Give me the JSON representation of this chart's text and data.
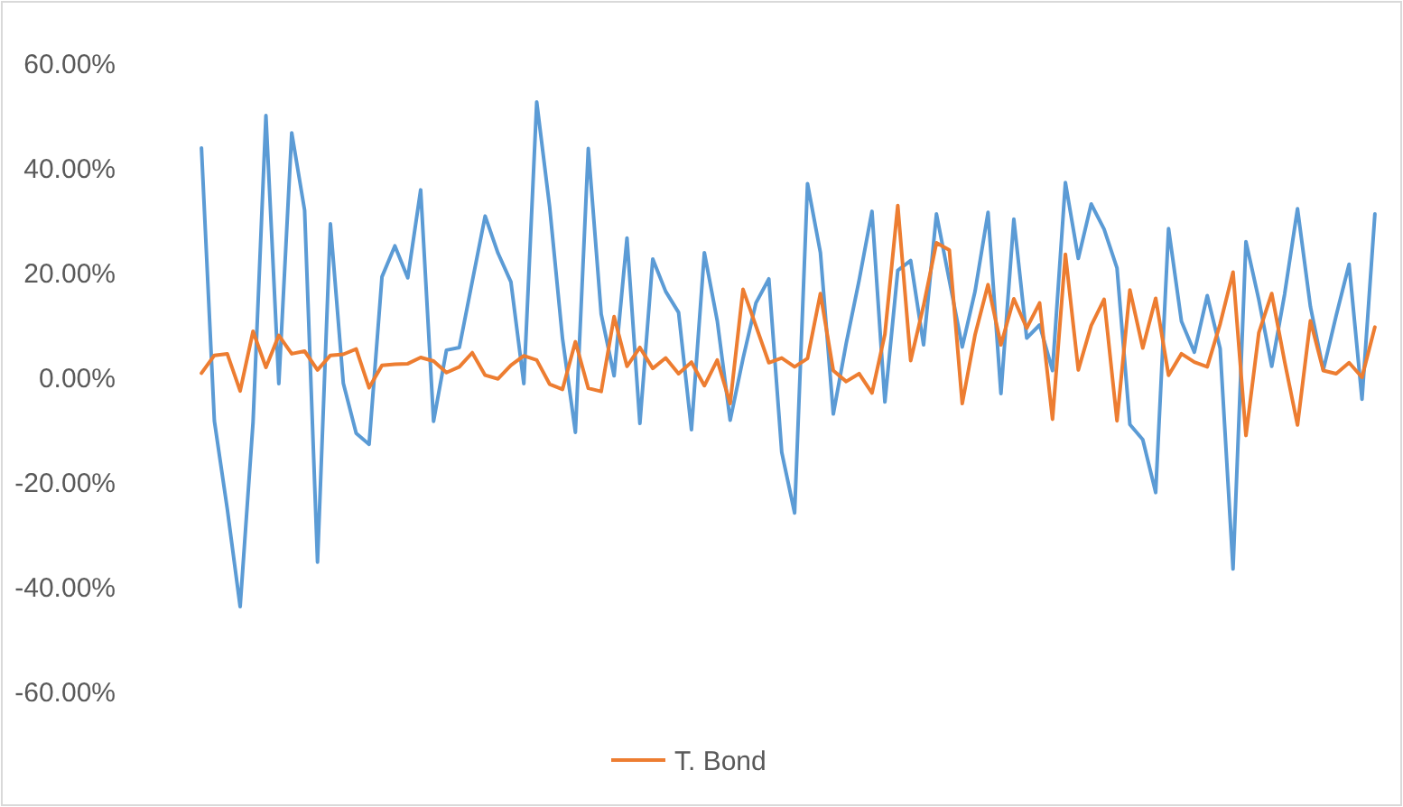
{
  "chart_data": {
    "type": "line",
    "categories": [
      null,
      null,
      null,
      null,
      null,
      null,
      null,
      null,
      null,
      null,
      null,
      null,
      null,
      null,
      null,
      null,
      null,
      null,
      null,
      null,
      null,
      null,
      null,
      null,
      null,
      null,
      null,
      null,
      null,
      null,
      null,
      null,
      null,
      null,
      null,
      null,
      null,
      null,
      null,
      null,
      null,
      null,
      null,
      null,
      null,
      null,
      null,
      null,
      null,
      null,
      null,
      null,
      null,
      null,
      null,
      null,
      null,
      null,
      null,
      null,
      null,
      null,
      null,
      null,
      null,
      null,
      null,
      null,
      null,
      null,
      null,
      null,
      null,
      null,
      null,
      null,
      null,
      null,
      null,
      null,
      null,
      null,
      null,
      null,
      null,
      null,
      null,
      null,
      null,
      null,
      null,
      null
    ],
    "series": [
      {
        "color": "#5b9bd5",
        "values": [
          43.8,
          -8.3,
          -25.1,
          -43.8,
          -8.6,
          50.0,
          -1.2,
          46.7,
          31.9,
          -35.3,
          29.3,
          -1.1,
          -10.7,
          -12.8,
          19.2,
          25.1,
          19.0,
          35.8,
          -8.4,
          5.2,
          5.7,
          18.3,
          30.8,
          23.7,
          18.2,
          -1.2,
          52.6,
          32.6,
          7.4,
          -10.5,
          43.7,
          12.1,
          0.3,
          26.6,
          -8.8,
          22.6,
          16.4,
          12.4,
          -10.0,
          23.8,
          10.8,
          -8.2,
          3.6,
          14.2,
          18.8,
          -14.3,
          -25.9,
          37.0,
          23.8,
          -7.0,
          6.5,
          18.5,
          31.7,
          -4.7,
          20.4,
          22.3,
          6.2,
          31.2,
          18.5,
          5.8,
          16.5,
          31.5,
          -3.1,
          30.2,
          7.5,
          10.0,
          1.3,
          37.2,
          22.7,
          33.1,
          28.3,
          20.9,
          -9.0,
          -11.9,
          -22.0,
          28.4,
          10.7,
          4.8,
          15.6,
          5.5,
          -36.6,
          25.9,
          14.8,
          2.1,
          15.9,
          32.2,
          13.5,
          1.4,
          11.8,
          21.6,
          -4.2,
          31.2
        ]
      },
      {
        "name": "T. Bond",
        "color": "#ed7d31",
        "values": [
          0.8,
          4.2,
          4.5,
          -2.6,
          8.8,
          1.9,
          8.0,
          4.5,
          5.0,
          1.4,
          4.2,
          4.4,
          5.4,
          -2.0,
          2.3,
          2.5,
          2.6,
          3.8,
          3.1,
          0.9,
          2.0,
          4.7,
          0.4,
          -0.3,
          2.3,
          4.1,
          3.3,
          -1.3,
          -2.3,
          6.8,
          -2.1,
          -2.7,
          11.6,
          2.1,
          5.7,
          1.7,
          3.7,
          0.7,
          2.9,
          -1.6,
          3.3,
          -5.0,
          16.8,
          9.8,
          2.8,
          3.7,
          2.0,
          3.6,
          16.0,
          1.3,
          -0.8,
          0.7,
          -3.0,
          8.2,
          32.8,
          3.2,
          13.7,
          25.7,
          24.3,
          -5.0,
          8.2,
          17.7,
          6.2,
          15.0,
          9.4,
          14.2,
          -8.0,
          23.5,
          1.4,
          9.9,
          14.9,
          -8.3,
          16.7,
          5.6,
          15.1,
          0.4,
          4.5,
          2.9,
          2.0,
          10.2,
          20.1,
          -11.1,
          8.5,
          16.0,
          3.0,
          -9.1,
          10.8,
          1.3,
          0.7,
          2.8,
          0.0,
          9.6
        ]
      }
    ],
    "ylim": [
      -60,
      60
    ],
    "yticks": [
      {
        "value": -60,
        "label": "-60.00%"
      },
      {
        "value": -40,
        "label": "-40.00%"
      },
      {
        "value": -20,
        "label": "-20.00%"
      },
      {
        "value": 0,
        "label": "0.00%"
      },
      {
        "value": 20,
        "label": "20.00%"
      },
      {
        "value": 40,
        "label": "40.00%"
      },
      {
        "value": 60,
        "label": "60.00%"
      }
    ],
    "legend": "bottom",
    "grid": false,
    "marker": "none",
    "line_style": "solid"
  }
}
